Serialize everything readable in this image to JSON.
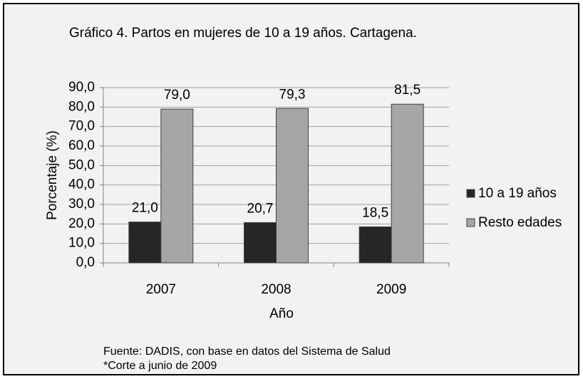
{
  "chart_data": {
    "type": "bar",
    "title": "Gráfico 4. Partos en mujeres de 10 a 19 años. Cartagena.",
    "x_label": "Año",
    "y_label": "Porcentaje (%)",
    "categories": [
      "2007",
      "2008",
      "2009"
    ],
    "series": [
      {
        "name": "10 a 19 años",
        "color": "#262626",
        "values": [
          21.0,
          20.7,
          18.5
        ],
        "value_labels": [
          "21,0",
          "20,7",
          "18,5"
        ]
      },
      {
        "name": "Resto edades",
        "color": "#a6a6a6",
        "values": [
          79.0,
          79.3,
          81.5
        ],
        "value_labels": [
          "79,0",
          "79,3",
          "81,5"
        ]
      }
    ],
    "ylim": [
      0,
      90
    ],
    "yticks": [
      {
        "value": 0,
        "label": "0,0"
      },
      {
        "value": 10,
        "label": "10,0"
      },
      {
        "value": 20,
        "label": "20,0"
      },
      {
        "value": 30,
        "label": "30,0"
      },
      {
        "value": 40,
        "label": "40,0"
      },
      {
        "value": 50,
        "label": "50,0"
      },
      {
        "value": 60,
        "label": "60,0"
      },
      {
        "value": 70,
        "label": "70,0"
      },
      {
        "value": 80,
        "label": "80,0"
      },
      {
        "value": 90,
        "label": "90,0"
      }
    ],
    "grid": true,
    "legend": "right",
    "source": "Fuente: DADIS, con base en datos del Sistema de Salud",
    "note": "*Corte a junio de 2009"
  }
}
